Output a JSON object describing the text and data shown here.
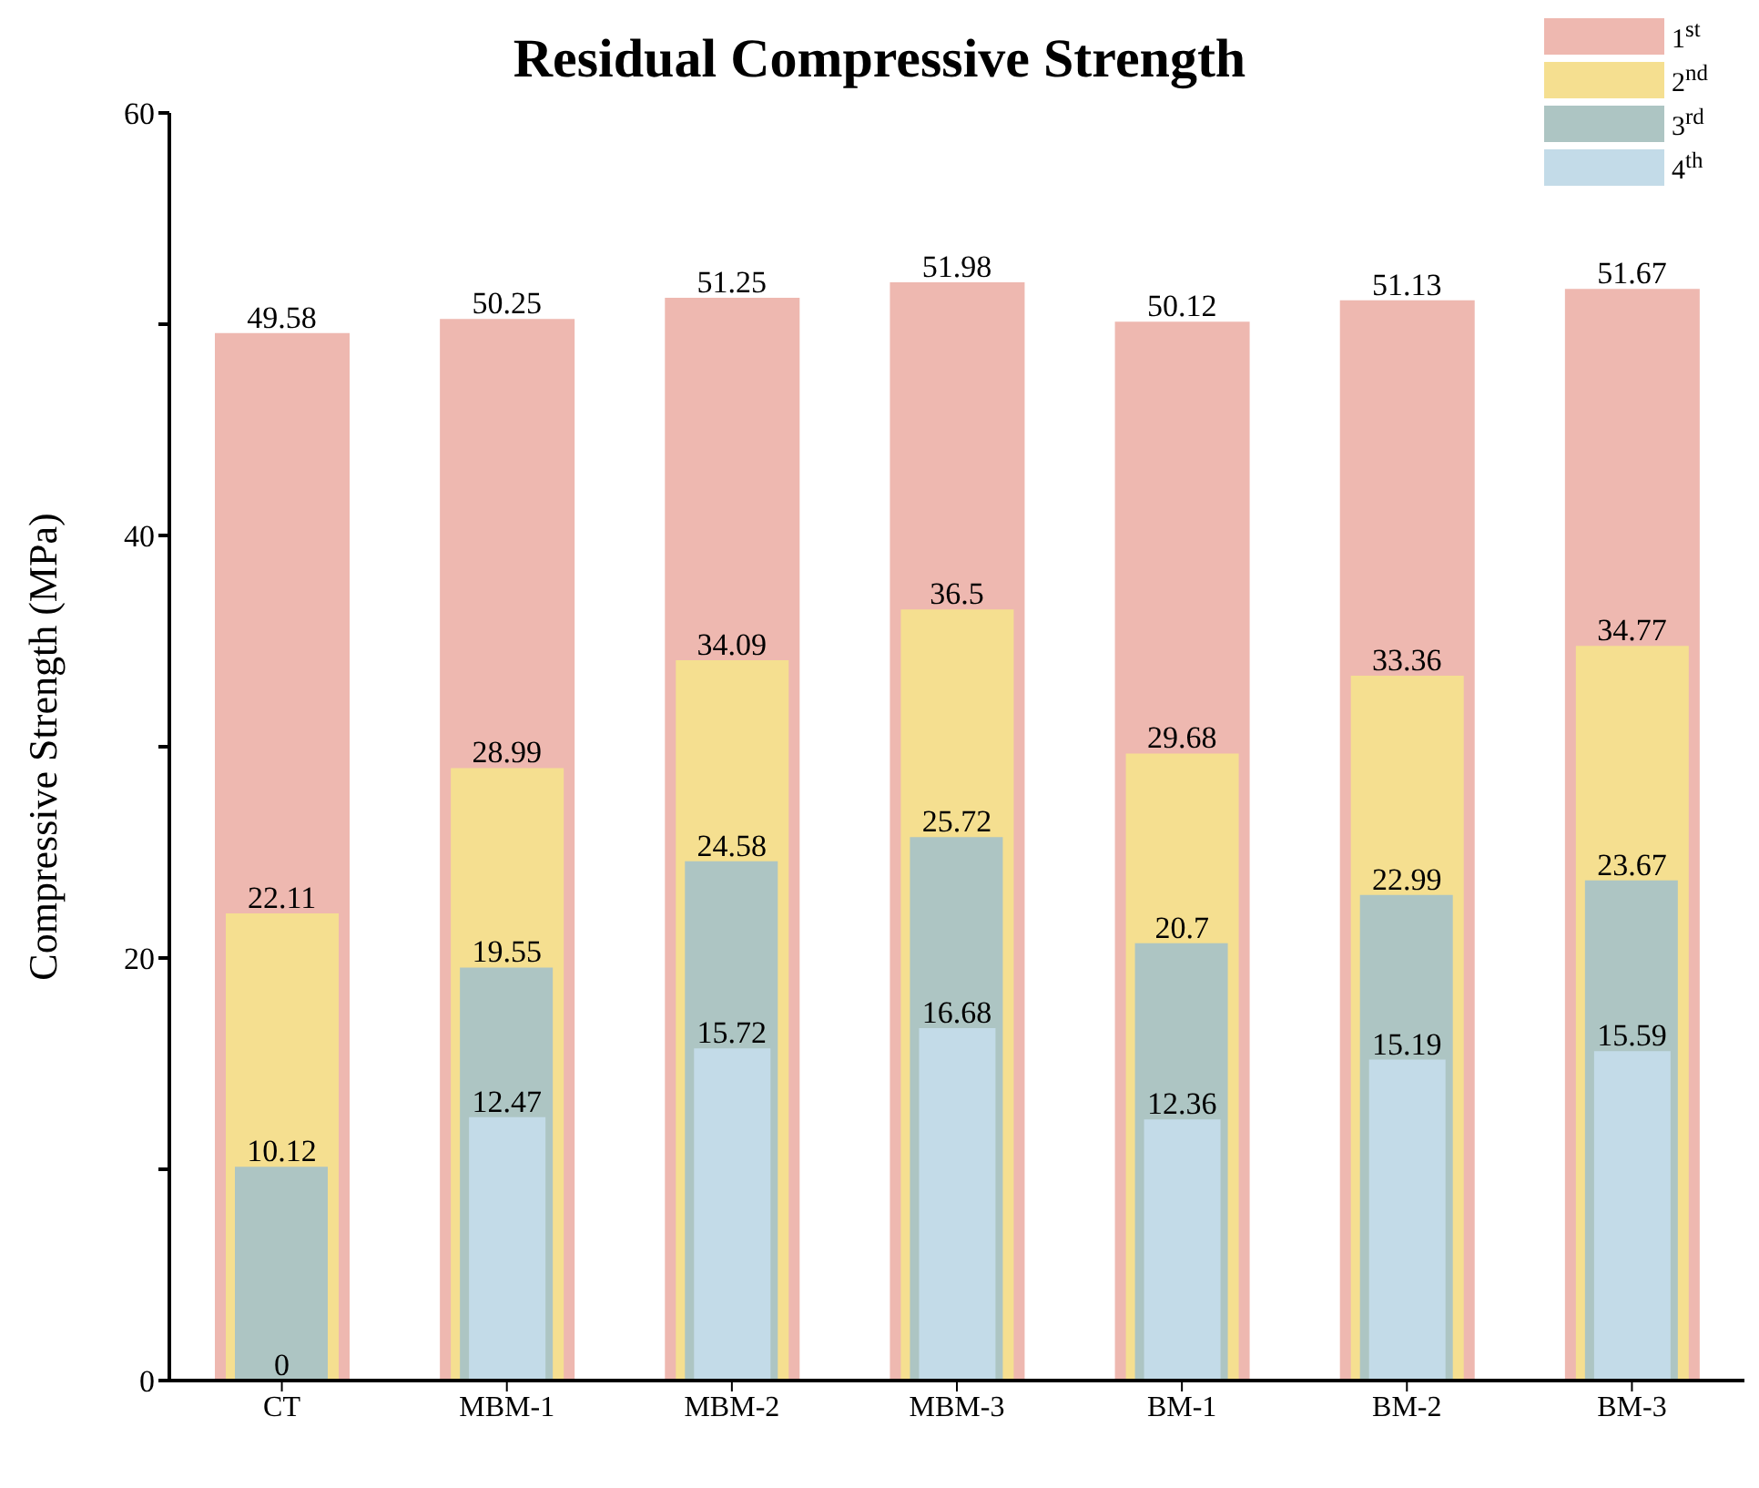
{
  "chart_data": {
    "type": "bar",
    "title": "Residual Compressive Strength",
    "ylabel": "Compressive Strength (MPa)",
    "categories": [
      "CT",
      "MBM-1",
      "MBM-2",
      "MBM-3",
      "BM-1",
      "BM-2",
      "BM-3"
    ],
    "series": [
      {
        "name": "1$^{st}$",
        "color": "#eeb8b0",
        "values": [
          49.58,
          50.25,
          51.25,
          51.98,
          50.12,
          51.13,
          51.67
        ]
      },
      {
        "name": "2$^{nd}$",
        "color": "#f5df90",
        "values": [
          22.11,
          28.99,
          34.09,
          36.5,
          29.68,
          33.36,
          34.77
        ]
      },
      {
        "name": "3$^{rd}$",
        "color": "#adc5c3",
        "values": [
          10.12,
          19.55,
          24.58,
          25.72,
          20.7,
          22.99,
          23.67
        ]
      },
      {
        "name": "4$^{th}$",
        "color": "#c3dbe8",
        "values": [
          0,
          12.47,
          15.72,
          16.68,
          12.36,
          15.19,
          15.59
        ]
      }
    ],
    "ylim": [
      0,
      60
    ],
    "yticks": [
      0,
      {
        "value": 10,
        "label": null
      },
      20,
      {
        "value": 30,
        "label": null
      },
      40,
      {
        "value": 50,
        "label": null
      },
      60
    ],
    "data_labels": true,
    "grid": false,
    "legend": "top right"
  }
}
